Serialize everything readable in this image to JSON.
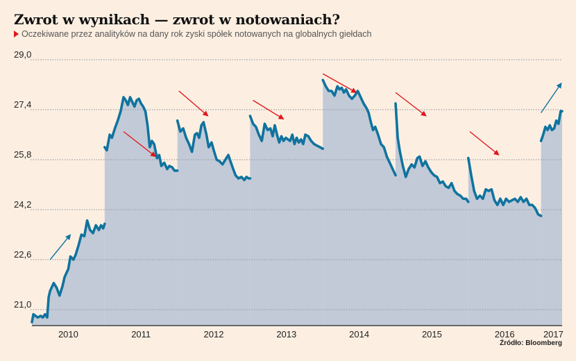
{
  "header": {
    "title": "Zwrot w wynikach — zwrot w notowaniach?",
    "subtitle": "Oczekiwane przez analityków na dany rok zyski spółek notowanych na globalnych giełdach"
  },
  "source": "Źródło: Bloomberg",
  "colors": {
    "background": "#fcefe2",
    "area": "#c2cad8",
    "line": "#10739e",
    "down_arrow": "#e0161b",
    "up_arrow": "#10739e"
  },
  "chart_data": {
    "type": "area",
    "title": "Zwrot w wynikach — zwrot w notowaniach?",
    "subtitle": "Oczekiwane przez analityków na dany rok zyski spółek notowanych na globalnych giełdach",
    "xlabel": "",
    "ylabel": "",
    "ylim": [
      20.5,
      29.0
    ],
    "xlim": [
      2010.0,
      2017.3
    ],
    "yticks": [
      21.0,
      22.6,
      24.2,
      25.8,
      27.4,
      29.0
    ],
    "ytick_labels": [
      "21,0",
      "22,6",
      "24,2",
      "25,8",
      "27,4",
      "29,0"
    ],
    "xtick_labels": [
      {
        "label": "2010",
        "x": 2010.5
      },
      {
        "label": "2011",
        "x": 2011.5
      },
      {
        "label": "2012",
        "x": 2012.5
      },
      {
        "label": "2013",
        "x": 2013.5
      },
      {
        "label": "2014",
        "x": 2014.5
      },
      {
        "label": "2015",
        "x": 2015.5
      },
      {
        "label": "2016",
        "x": 2016.5
      },
      {
        "label": "2017",
        "x": 2017.17
      }
    ],
    "grid": true,
    "legend": "none",
    "series": [
      {
        "name": "2010",
        "x": [
          2010.0,
          2010.02,
          2010.05,
          2010.08,
          2010.12,
          2010.15,
          2010.18,
          2010.21,
          2010.23,
          2010.25,
          2010.3,
          2010.34,
          2010.38,
          2010.42,
          2010.45,
          2010.5,
          2010.53,
          2010.57,
          2010.6,
          2010.64,
          2010.68,
          2010.72,
          2010.76,
          2010.8,
          2010.84,
          2010.88,
          2010.92,
          2010.95,
          2010.98,
          2011.0
        ],
        "values": [
          20.6,
          20.85,
          20.8,
          20.75,
          20.8,
          20.75,
          20.85,
          20.75,
          21.4,
          21.6,
          21.85,
          21.7,
          21.45,
          21.75,
          22.05,
          22.3,
          22.7,
          22.6,
          22.75,
          23.05,
          23.4,
          23.35,
          23.85,
          23.55,
          23.45,
          23.7,
          23.55,
          23.7,
          23.6,
          23.75
        ]
      },
      {
        "name": "2011",
        "x": [
          2011.0,
          2011.03,
          2011.07,
          2011.1,
          2011.14,
          2011.18,
          2011.22,
          2011.26,
          2011.29,
          2011.32,
          2011.35,
          2011.38,
          2011.41,
          2011.44,
          2011.47,
          2011.5,
          2011.53,
          2011.56,
          2011.59,
          2011.62,
          2011.65,
          2011.68,
          2011.72,
          2011.75,
          2011.78,
          2011.82,
          2011.86,
          2011.89,
          2011.93,
          2011.96,
          2012.0
        ],
        "values": [
          26.2,
          26.1,
          26.6,
          26.5,
          26.8,
          27.05,
          27.35,
          27.8,
          27.7,
          27.55,
          27.8,
          27.65,
          27.5,
          27.7,
          27.75,
          27.6,
          27.5,
          27.35,
          26.9,
          26.2,
          26.4,
          26.3,
          25.85,
          25.95,
          25.6,
          25.7,
          25.5,
          25.6,
          25.55,
          25.45,
          25.45
        ]
      },
      {
        "name": "2012",
        "x": [
          2012.0,
          2012.04,
          2012.08,
          2012.12,
          2012.16,
          2012.2,
          2012.24,
          2012.27,
          2012.3,
          2012.33,
          2012.36,
          2012.4,
          2012.43,
          2012.47,
          2012.5,
          2012.54,
          2012.58,
          2012.62,
          2012.66,
          2012.7,
          2012.73,
          2012.76,
          2012.8,
          2012.84,
          2012.88,
          2012.92,
          2012.95,
          2012.98,
          2013.0
        ],
        "values": [
          27.05,
          26.7,
          26.8,
          26.5,
          26.3,
          26.05,
          26.6,
          26.65,
          26.5,
          26.9,
          27.0,
          26.6,
          26.2,
          26.35,
          26.1,
          25.8,
          25.75,
          25.65,
          25.8,
          25.95,
          25.75,
          25.55,
          25.3,
          25.2,
          25.25,
          25.15,
          25.25,
          25.2,
          25.2
        ]
      },
      {
        "name": "2013",
        "x": [
          2013.0,
          2013.04,
          2013.08,
          2013.12,
          2013.16,
          2013.2,
          2013.24,
          2013.28,
          2013.31,
          2013.34,
          2013.37,
          2013.4,
          2013.43,
          2013.46,
          2013.49,
          2013.52,
          2013.55,
          2013.58,
          2013.61,
          2013.64,
          2013.67,
          2013.7,
          2013.73,
          2013.76,
          2013.8,
          2013.84,
          2013.88,
          2013.92,
          2013.96,
          2014.0
        ],
        "values": [
          27.2,
          26.95,
          26.85,
          26.6,
          26.4,
          26.95,
          26.75,
          26.8,
          26.55,
          26.9,
          26.6,
          26.35,
          26.55,
          26.4,
          26.5,
          26.45,
          26.4,
          26.6,
          26.3,
          26.5,
          26.35,
          26.45,
          26.3,
          26.6,
          26.55,
          26.4,
          26.3,
          26.25,
          26.2,
          26.15
        ]
      },
      {
        "name": "2014",
        "x": [
          2014.0,
          2014.04,
          2014.08,
          2014.12,
          2014.16,
          2014.2,
          2014.23,
          2014.26,
          2014.29,
          2014.32,
          2014.36,
          2014.4,
          2014.44,
          2014.48,
          2014.52,
          2014.56,
          2014.6,
          2014.63,
          2014.66,
          2014.69,
          2014.72,
          2014.76,
          2014.8,
          2014.84,
          2014.88,
          2014.92,
          2014.96,
          2015.0
        ],
        "values": [
          28.35,
          28.15,
          28.0,
          28.0,
          27.85,
          28.15,
          28.05,
          28.1,
          27.95,
          28.05,
          27.85,
          27.75,
          27.85,
          28.0,
          27.8,
          27.6,
          27.45,
          27.3,
          27.0,
          26.75,
          26.85,
          26.6,
          26.3,
          26.2,
          25.9,
          25.7,
          25.5,
          25.3
        ]
      },
      {
        "name": "2015",
        "x": [
          2015.0,
          2015.03,
          2015.06,
          2015.1,
          2015.14,
          2015.18,
          2015.22,
          2015.26,
          2015.3,
          2015.33,
          2015.37,
          2015.41,
          2015.45,
          2015.49,
          2015.53,
          2015.57,
          2015.61,
          2015.65,
          2015.69,
          2015.73,
          2015.77,
          2015.81,
          2015.85,
          2015.89,
          2015.93,
          2015.97,
          2016.0
        ],
        "values": [
          27.6,
          26.5,
          26.05,
          25.6,
          25.25,
          25.5,
          25.65,
          25.55,
          25.85,
          25.9,
          25.6,
          25.75,
          25.55,
          25.4,
          25.3,
          25.25,
          25.05,
          25.1,
          24.95,
          24.9,
          25.05,
          24.8,
          24.7,
          24.65,
          24.55,
          24.55,
          24.45
        ]
      },
      {
        "name": "2016",
        "x": [
          2016.0,
          2016.04,
          2016.08,
          2016.12,
          2016.16,
          2016.2,
          2016.24,
          2016.28,
          2016.32,
          2016.36,
          2016.4,
          2016.44,
          2016.48,
          2016.52,
          2016.56,
          2016.6,
          2016.64,
          2016.68,
          2016.72,
          2016.76,
          2016.8,
          2016.84,
          2016.88,
          2016.92,
          2016.96,
          2017.0
        ],
        "values": [
          25.85,
          25.3,
          24.8,
          24.55,
          24.65,
          24.55,
          24.85,
          24.8,
          24.85,
          24.5,
          24.35,
          24.55,
          24.35,
          24.55,
          24.45,
          24.5,
          24.55,
          24.45,
          24.6,
          24.45,
          24.55,
          24.35,
          24.35,
          24.25,
          24.05,
          24.0
        ]
      },
      {
        "name": "2017",
        "x": [
          2017.0,
          2017.03,
          2017.06,
          2017.09,
          2017.12,
          2017.15,
          2017.18,
          2017.21,
          2017.24,
          2017.27,
          2017.29
        ],
        "values": [
          26.4,
          26.6,
          26.85,
          26.75,
          26.9,
          26.75,
          26.8,
          27.05,
          26.95,
          27.35,
          27.35
        ]
      }
    ],
    "annotations": [
      {
        "type": "arrow",
        "direction": "up",
        "color": "up",
        "from": [
          2010.25,
          22.6
        ],
        "to": [
          2010.53,
          23.4
        ]
      },
      {
        "type": "arrow",
        "direction": "down",
        "color": "down",
        "from": [
          2011.26,
          26.7
        ],
        "to": [
          2011.7,
          25.9
        ]
      },
      {
        "type": "arrow",
        "direction": "down",
        "color": "down",
        "from": [
          2012.02,
          28.0
        ],
        "to": [
          2012.42,
          27.2
        ]
      },
      {
        "type": "arrow",
        "direction": "down",
        "color": "down",
        "from": [
          2013.04,
          27.7
        ],
        "to": [
          2013.46,
          27.1
        ]
      },
      {
        "type": "arrow",
        "direction": "down",
        "color": "down",
        "from": [
          2014.0,
          28.55
        ],
        "to": [
          2014.46,
          27.95
        ]
      },
      {
        "type": "arrow",
        "direction": "down",
        "color": "down",
        "from": [
          2015.0,
          27.95
        ],
        "to": [
          2015.42,
          27.2
        ]
      },
      {
        "type": "arrow",
        "direction": "down",
        "color": "down",
        "from": [
          2016.02,
          26.7
        ],
        "to": [
          2016.42,
          25.95
        ]
      },
      {
        "type": "arrow",
        "direction": "up",
        "color": "up",
        "from": [
          2017.0,
          27.3
        ],
        "to": [
          2017.28,
          28.25
        ]
      }
    ]
  }
}
